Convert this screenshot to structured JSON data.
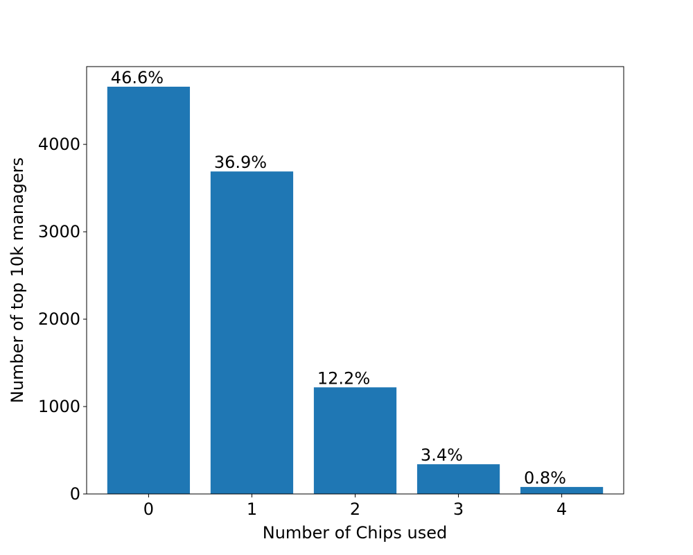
{
  "chart_data": {
    "type": "bar",
    "categories": [
      "0",
      "1",
      "2",
      "3",
      "4"
    ],
    "values": [
      4660,
      3690,
      1220,
      340,
      80
    ],
    "data_labels": [
      "46.6%",
      "36.9%",
      "12.2%",
      "3.4%",
      "0.8%"
    ],
    "xlabel": "Number of Chips used",
    "ylabel": "Number of top 10k managers",
    "ylim": [
      0,
      4890
    ],
    "yticks": [
      0,
      1000,
      2000,
      3000,
      4000
    ],
    "bar_color": "#1f77b4",
    "grid": false,
    "legend": "none"
  }
}
